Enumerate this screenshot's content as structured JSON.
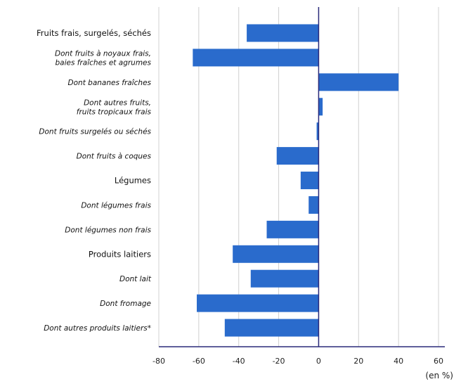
{
  "chart_data": {
    "type": "bar",
    "orientation": "horizontal",
    "categories": [
      {
        "label": [
          "Fruits frais, surgelés, séchés"
        ],
        "style": "bold"
      },
      {
        "label": [
          "Dont fruits à noyaux frais,",
          "baies fraîches et agrumes"
        ],
        "style": "italic"
      },
      {
        "label": [
          "Dont bananes fraîches"
        ],
        "style": "italic"
      },
      {
        "label": [
          "Dont autres fruits,",
          "fruits tropicaux frais"
        ],
        "style": "italic"
      },
      {
        "label": [
          "Dont fruits surgelés ou séchés"
        ],
        "style": "italic"
      },
      {
        "label": [
          "Dont fruits à coques"
        ],
        "style": "italic"
      },
      {
        "label": [
          "Légumes"
        ],
        "style": "bold"
      },
      {
        "label": [
          "Dont légumes frais"
        ],
        "style": "italic"
      },
      {
        "label": [
          "Dont légumes non frais"
        ],
        "style": "italic"
      },
      {
        "label": [
          "Produits laitiers"
        ],
        "style": "bold"
      },
      {
        "label": [
          "Dont lait"
        ],
        "style": "italic"
      },
      {
        "label": [
          "Dont fromage"
        ],
        "style": "italic"
      },
      {
        "label": [
          "Dont autres produits laitiers*"
        ],
        "style": "italic"
      }
    ],
    "values": [
      -36,
      -63,
      40,
      2,
      -1,
      -21,
      -9,
      -5,
      -26,
      -43,
      -34,
      -61,
      -47
    ],
    "xlim": [
      -80,
      60
    ],
    "xticks": [
      -80,
      -60,
      -40,
      -20,
      0,
      20,
      40,
      60
    ],
    "unit_label": "(en %)",
    "grid": "vertical",
    "bar_color": "#2a6bcc"
  }
}
